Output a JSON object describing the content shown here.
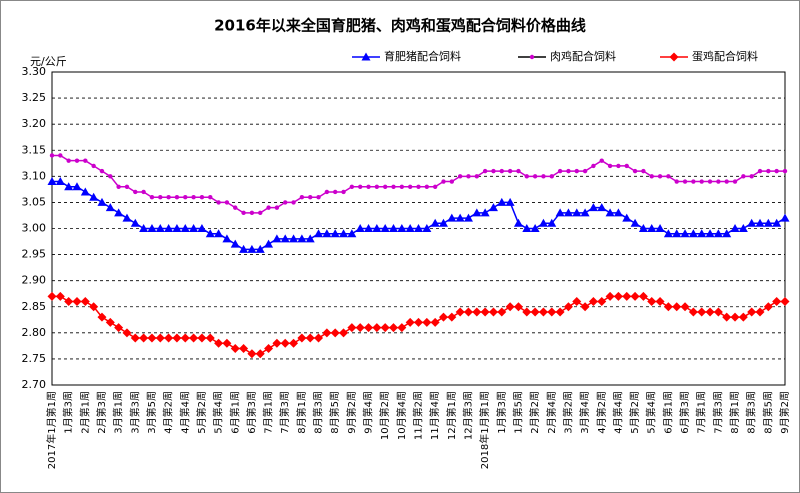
{
  "chart_data": {
    "type": "line",
    "title": "2016年以来全国育肥猪、肉鸡和蛋鸡配合饲料价格曲线",
    "y_label": "元/公斤",
    "categories": [
      "2017年1月第1周",
      null,
      "1月第3周",
      null,
      "2月第1周",
      null,
      "2月第3周",
      null,
      "3月第1周",
      null,
      "3月第3周",
      null,
      "3月第5周",
      null,
      "4月第2周",
      null,
      "4月第4周",
      null,
      "5月第2周",
      null,
      "5月第4周",
      null,
      "6月第1周",
      null,
      "6月第3周",
      null,
      "7月第1周",
      null,
      "7月第3周",
      null,
      "8月第1周",
      null,
      "8月第3周",
      null,
      "8月第5周",
      null,
      "9月第2周",
      null,
      "9月第4周",
      null,
      "10月第2周",
      null,
      "10月第4周",
      null,
      "11月第2周",
      null,
      "11月第4周",
      null,
      "12月第1周",
      null,
      "12月第3周",
      null,
      "2018年1月第1周",
      null,
      "1月第3周",
      null,
      "1月第5周",
      null,
      "2月第2周",
      null,
      "2月第4周",
      null,
      "3月第2周",
      null,
      "3月第4周",
      null,
      "4月第2周",
      null,
      "4月第4周",
      null,
      "5月第2周",
      null,
      "5月第4周",
      null,
      "6月第1周",
      null,
      "6月第3周",
      null,
      "7月第1周",
      null,
      "7月第3周",
      null,
      "8月第1周",
      null,
      "8月第3周",
      null,
      "8月第5周",
      null,
      "9月第2周"
    ],
    "series": [
      {
        "name": "育肥猪配合饲料",
        "color": "#0000ff",
        "marker": "triangle",
        "values": [
          3.09,
          3.09,
          3.08,
          3.08,
          3.07,
          3.06,
          3.05,
          3.04,
          3.03,
          3.02,
          3.01,
          3.0,
          3.0,
          3.0,
          3.0,
          3.0,
          3.0,
          3.0,
          3.0,
          2.99,
          2.99,
          2.98,
          2.97,
          2.96,
          2.96,
          2.96,
          2.97,
          2.98,
          2.98,
          2.98,
          2.98,
          2.98,
          2.99,
          2.99,
          2.99,
          2.99,
          2.99,
          3.0,
          3.0,
          3.0,
          3.0,
          3.0,
          3.0,
          3.0,
          3.0,
          3.0,
          3.01,
          3.01,
          3.02,
          3.02,
          3.02,
          3.03,
          3.03,
          3.04,
          3.05,
          3.05,
          3.01,
          3.0,
          3.0,
          3.01,
          3.01,
          3.03,
          3.03,
          3.03,
          3.03,
          3.04,
          3.04,
          3.03,
          3.03,
          3.02,
          3.01,
          3.0,
          3.0,
          3.0,
          2.99,
          2.99,
          2.99,
          2.99,
          2.99,
          2.99,
          2.99,
          2.99,
          3.0,
          3.0,
          3.01,
          3.01,
          3.01,
          3.01,
          3.02
        ]
      },
      {
        "name": "肉鸡配合饲料",
        "color": "#cc00cc",
        "marker": "circle",
        "values": [
          3.14,
          3.14,
          3.13,
          3.13,
          3.13,
          3.12,
          3.11,
          3.1,
          3.08,
          3.08,
          3.07,
          3.07,
          3.06,
          3.06,
          3.06,
          3.06,
          3.06,
          3.06,
          3.06,
          3.06,
          3.05,
          3.05,
          3.04,
          3.03,
          3.03,
          3.03,
          3.04,
          3.04,
          3.05,
          3.05,
          3.06,
          3.06,
          3.06,
          3.07,
          3.07,
          3.07,
          3.08,
          3.08,
          3.08,
          3.08,
          3.08,
          3.08,
          3.08,
          3.08,
          3.08,
          3.08,
          3.08,
          3.09,
          3.09,
          3.1,
          3.1,
          3.1,
          3.11,
          3.11,
          3.11,
          3.11,
          3.11,
          3.1,
          3.1,
          3.1,
          3.1,
          3.11,
          3.11,
          3.11,
          3.11,
          3.12,
          3.13,
          3.12,
          3.12,
          3.12,
          3.11,
          3.11,
          3.1,
          3.1,
          3.1,
          3.09,
          3.09,
          3.09,
          3.09,
          3.09,
          3.09,
          3.09,
          3.09,
          3.1,
          3.1,
          3.11,
          3.11,
          3.11,
          3.11
        ]
      },
      {
        "name": "蛋鸡配合饲料",
        "color": "#ff0000",
        "marker": "diamond",
        "values": [
          2.87,
          2.87,
          2.86,
          2.86,
          2.86,
          2.85,
          2.83,
          2.82,
          2.81,
          2.8,
          2.79,
          2.79,
          2.79,
          2.79,
          2.79,
          2.79,
          2.79,
          2.79,
          2.79,
          2.79,
          2.78,
          2.78,
          2.77,
          2.77,
          2.76,
          2.76,
          2.77,
          2.78,
          2.78,
          2.78,
          2.79,
          2.79,
          2.79,
          2.8,
          2.8,
          2.8,
          2.81,
          2.81,
          2.81,
          2.81,
          2.81,
          2.81,
          2.81,
          2.82,
          2.82,
          2.82,
          2.82,
          2.83,
          2.83,
          2.84,
          2.84,
          2.84,
          2.84,
          2.84,
          2.84,
          2.85,
          2.85,
          2.84,
          2.84,
          2.84,
          2.84,
          2.84,
          2.85,
          2.86,
          2.85,
          2.86,
          2.86,
          2.87,
          2.87,
          2.87,
          2.87,
          2.87,
          2.86,
          2.86,
          2.85,
          2.85,
          2.85,
          2.84,
          2.84,
          2.84,
          2.84,
          2.83,
          2.83,
          2.83,
          2.84,
          2.84,
          2.85,
          2.86,
          2.86
        ]
      }
    ],
    "ylim": [
      2.7,
      3.3
    ],
    "yticks": [
      {
        "value": 2.7,
        "label": "2.70"
      },
      {
        "value": 2.75,
        "label": "2.75"
      },
      {
        "value": 2.8,
        "label": "2.80"
      },
      {
        "value": 2.85,
        "label": "2.85"
      },
      {
        "value": 2.9,
        "label": "2.90"
      },
      {
        "value": 2.95,
        "label": "2.95"
      },
      {
        "value": 3.0,
        "label": "3.00"
      },
      {
        "value": 3.05,
        "label": "3.05"
      },
      {
        "value": 3.1,
        "label": "3.10"
      },
      {
        "value": 3.15,
        "label": "3.15"
      },
      {
        "value": 3.2,
        "label": "3.20"
      },
      {
        "value": 3.25,
        "label": "3.25"
      },
      {
        "value": 3.3,
        "label": "3.30"
      }
    ],
    "grid": true,
    "legend": "top-right"
  }
}
